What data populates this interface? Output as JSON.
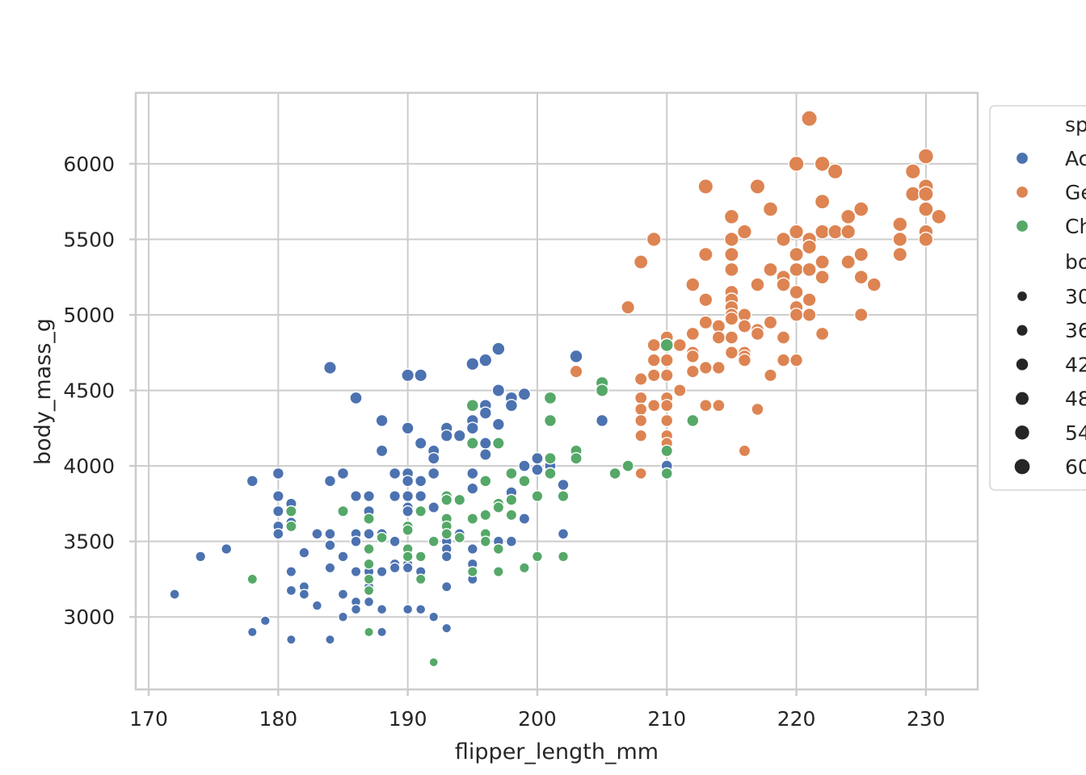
{
  "chart_data": {
    "type": "scatter",
    "title": "",
    "xlabel": "flipper_length_mm",
    "ylabel": "body_mass_g",
    "xlim": [
      169,
      234
    ],
    "ylim": [
      2520,
      6470
    ],
    "xticks": [
      170,
      180,
      190,
      200,
      210,
      220,
      230
    ],
    "yticks": [
      3000,
      3500,
      4000,
      4500,
      5000,
      5500,
      6000
    ],
    "grid": true,
    "legend_placement": "outside right",
    "hue_title": "sp",
    "size_title": "bo",
    "size_legend": [
      {
        "label": "30",
        "value": 3000
      },
      {
        "label": "36",
        "value": 3600
      },
      {
        "label": "42",
        "value": 4200
      },
      {
        "label": "48",
        "value": 4800
      },
      {
        "label": "54",
        "value": 5400
      },
      {
        "label": "60",
        "value": 6000
      }
    ],
    "series": [
      {
        "name": "Ac",
        "color": "#4c72b0",
        "points": [
          [
            172,
            3150
          ],
          [
            174,
            3400
          ],
          [
            176,
            3450
          ],
          [
            178,
            3900
          ],
          [
            178,
            2900
          ],
          [
            179,
            2975
          ],
          [
            180,
            3950
          ],
          [
            180,
            3800
          ],
          [
            180,
            3700
          ],
          [
            180,
            3600
          ],
          [
            180,
            3550
          ],
          [
            181,
            3750
          ],
          [
            181,
            3700
          ],
          [
            181,
            3625
          ],
          [
            181,
            3300
          ],
          [
            181,
            3175
          ],
          [
            181,
            2850
          ],
          [
            182,
            3425
          ],
          [
            182,
            3200
          ],
          [
            182,
            3150
          ],
          [
            183,
            3550
          ],
          [
            183,
            3075
          ],
          [
            184,
            4650
          ],
          [
            184,
            3900
          ],
          [
            184,
            3550
          ],
          [
            184,
            3475
          ],
          [
            184,
            3325
          ],
          [
            184,
            2850
          ],
          [
            185,
            3950
          ],
          [
            185,
            3700
          ],
          [
            185,
            3400
          ],
          [
            185,
            3150
          ],
          [
            185,
            3000
          ],
          [
            186,
            4450
          ],
          [
            186,
            3800
          ],
          [
            186,
            3550
          ],
          [
            186,
            3500
          ],
          [
            186,
            3300
          ],
          [
            186,
            3100
          ],
          [
            186,
            3050
          ],
          [
            187,
            3800
          ],
          [
            187,
            3700
          ],
          [
            187,
            3550
          ],
          [
            187,
            3450
          ],
          [
            187,
            3300
          ],
          [
            187,
            3200
          ],
          [
            187,
            3100
          ],
          [
            188,
            4300
          ],
          [
            188,
            4100
          ],
          [
            188,
            3550
          ],
          [
            188,
            3300
          ],
          [
            188,
            3050
          ],
          [
            188,
            2900
          ],
          [
            189,
            3950
          ],
          [
            189,
            3800
          ],
          [
            189,
            3500
          ],
          [
            189,
            3350
          ],
          [
            189,
            3325
          ],
          [
            190,
            4600
          ],
          [
            190,
            4250
          ],
          [
            190,
            3950
          ],
          [
            190,
            3900
          ],
          [
            190,
            3800
          ],
          [
            190,
            3725
          ],
          [
            190,
            3700
          ],
          [
            190,
            3450
          ],
          [
            190,
            3350
          ],
          [
            190,
            3325
          ],
          [
            190,
            3050
          ],
          [
            191,
            4600
          ],
          [
            191,
            4150
          ],
          [
            191,
            3900
          ],
          [
            191,
            3800
          ],
          [
            191,
            3700
          ],
          [
            191,
            3300
          ],
          [
            191,
            3250
          ],
          [
            191,
            3050
          ],
          [
            192,
            4100
          ],
          [
            192,
            4050
          ],
          [
            192,
            3950
          ],
          [
            192,
            3725
          ],
          [
            192,
            3000
          ],
          [
            193,
            4250
          ],
          [
            193,
            4200
          ],
          [
            193,
            3800
          ],
          [
            193,
            3500
          ],
          [
            193,
            3450
          ],
          [
            193,
            3400
          ],
          [
            193,
            3200
          ],
          [
            193,
            2925
          ],
          [
            194,
            4200
          ],
          [
            194,
            3775
          ],
          [
            194,
            3550
          ],
          [
            195,
            4675
          ],
          [
            195,
            4300
          ],
          [
            195,
            4250
          ],
          [
            195,
            4150
          ],
          [
            195,
            3950
          ],
          [
            195,
            3850
          ],
          [
            195,
            3450
          ],
          [
            195,
            3350
          ],
          [
            195,
            3250
          ],
          [
            196,
            4700
          ],
          [
            196,
            4400
          ],
          [
            196,
            4350
          ],
          [
            196,
            4150
          ],
          [
            196,
            4075
          ],
          [
            196,
            3550
          ],
          [
            197,
            4775
          ],
          [
            197,
            4500
          ],
          [
            197,
            4275
          ],
          [
            197,
            3500
          ],
          [
            198,
            4450
          ],
          [
            198,
            4400
          ],
          [
            198,
            3825
          ],
          [
            198,
            3775
          ],
          [
            198,
            3500
          ],
          [
            199,
            4475
          ],
          [
            199,
            4000
          ],
          [
            199,
            3650
          ],
          [
            200,
            4050
          ],
          [
            200,
            3975
          ],
          [
            201,
            4050
          ],
          [
            201,
            4000
          ],
          [
            201,
            3950
          ],
          [
            202,
            3875
          ],
          [
            202,
            3550
          ],
          [
            203,
            4725
          ],
          [
            205,
            4300
          ],
          [
            210,
            4000
          ]
        ]
      },
      {
        "name": "Ge",
        "color": "#dd8452",
        "points": [
          [
            203,
            4625
          ],
          [
            207,
            5050
          ],
          [
            208,
            5350
          ],
          [
            208,
            4575
          ],
          [
            208,
            4450
          ],
          [
            208,
            4375
          ],
          [
            208,
            4300
          ],
          [
            208,
            4200
          ],
          [
            208,
            3950
          ],
          [
            209,
            5500
          ],
          [
            209,
            4800
          ],
          [
            209,
            4700
          ],
          [
            209,
            4600
          ],
          [
            209,
            4400
          ],
          [
            210,
            4850
          ],
          [
            210,
            4800
          ],
          [
            210,
            4700
          ],
          [
            210,
            4600
          ],
          [
            210,
            4450
          ],
          [
            210,
            4400
          ],
          [
            210,
            4300
          ],
          [
            210,
            4200
          ],
          [
            210,
            4150
          ],
          [
            211,
            4800
          ],
          [
            211,
            4500
          ],
          [
            212,
            5200
          ],
          [
            212,
            4875
          ],
          [
            212,
            4750
          ],
          [
            212,
            4725
          ],
          [
            212,
            4625
          ],
          [
            213,
            5850
          ],
          [
            213,
            5400
          ],
          [
            213,
            5100
          ],
          [
            213,
            4950
          ],
          [
            213,
            4650
          ],
          [
            213,
            4400
          ],
          [
            214,
            4925
          ],
          [
            214,
            4850
          ],
          [
            214,
            4650
          ],
          [
            214,
            4400
          ],
          [
            215,
            5650
          ],
          [
            215,
            5500
          ],
          [
            215,
            5400
          ],
          [
            215,
            5300
          ],
          [
            215,
            5150
          ],
          [
            215,
            5100
          ],
          [
            215,
            5050
          ],
          [
            215,
            5000
          ],
          [
            215,
            4975
          ],
          [
            215,
            4850
          ],
          [
            215,
            4750
          ],
          [
            216,
            5550
          ],
          [
            216,
            5000
          ],
          [
            216,
            4925
          ],
          [
            216,
            4750
          ],
          [
            216,
            4725
          ],
          [
            216,
            4700
          ],
          [
            216,
            4100
          ],
          [
            217,
            5850
          ],
          [
            217,
            5200
          ],
          [
            217,
            4900
          ],
          [
            217,
            4875
          ],
          [
            217,
            4375
          ],
          [
            218,
            5700
          ],
          [
            218,
            5300
          ],
          [
            218,
            4950
          ],
          [
            218,
            4600
          ],
          [
            219,
            5500
          ],
          [
            219,
            5250
          ],
          [
            219,
            5200
          ],
          [
            219,
            4850
          ],
          [
            219,
            4700
          ],
          [
            220,
            6000
          ],
          [
            220,
            5550
          ],
          [
            220,
            5400
          ],
          [
            220,
            5300
          ],
          [
            220,
            5150
          ],
          [
            220,
            5050
          ],
          [
            220,
            5000
          ],
          [
            220,
            4700
          ],
          [
            221,
            6300
          ],
          [
            221,
            5500
          ],
          [
            221,
            5450
          ],
          [
            221,
            5300
          ],
          [
            221,
            5100
          ],
          [
            221,
            5000
          ],
          [
            222,
            6000
          ],
          [
            222,
            5750
          ],
          [
            222,
            5550
          ],
          [
            222,
            5350
          ],
          [
            222,
            5250
          ],
          [
            222,
            4875
          ],
          [
            223,
            5950
          ],
          [
            223,
            5550
          ],
          [
            224,
            5650
          ],
          [
            224,
            5550
          ],
          [
            224,
            5350
          ],
          [
            225,
            5700
          ],
          [
            225,
            5400
          ],
          [
            225,
            5250
          ],
          [
            225,
            5000
          ],
          [
            226,
            5200
          ],
          [
            228,
            5600
          ],
          [
            228,
            5500
          ],
          [
            228,
            5400
          ],
          [
            229,
            5950
          ],
          [
            229,
            5800
          ],
          [
            230,
            6050
          ],
          [
            230,
            5850
          ],
          [
            230,
            5800
          ],
          [
            230,
            5700
          ],
          [
            230,
            5550
          ],
          [
            230,
            5500
          ],
          [
            231,
            5650
          ]
        ]
      },
      {
        "name": "Ch",
        "color": "#55a868",
        "points": [
          [
            178,
            3250
          ],
          [
            181,
            3700
          ],
          [
            181,
            3600
          ],
          [
            185,
            3700
          ],
          [
            187,
            3650
          ],
          [
            187,
            3450
          ],
          [
            187,
            3350
          ],
          [
            187,
            3250
          ],
          [
            187,
            3175
          ],
          [
            187,
            2900
          ],
          [
            188,
            3525
          ],
          [
            190,
            3600
          ],
          [
            190,
            3575
          ],
          [
            190,
            3450
          ],
          [
            190,
            3400
          ],
          [
            191,
            3700
          ],
          [
            191,
            3400
          ],
          [
            191,
            3250
          ],
          [
            192,
            3500
          ],
          [
            192,
            2700
          ],
          [
            193,
            3800
          ],
          [
            193,
            3775
          ],
          [
            193,
            3650
          ],
          [
            193,
            3600
          ],
          [
            193,
            3550
          ],
          [
            194,
            3775
          ],
          [
            194,
            3525
          ],
          [
            195,
            4400
          ],
          [
            195,
            4150
          ],
          [
            195,
            3650
          ],
          [
            195,
            3300
          ],
          [
            196,
            3900
          ],
          [
            196,
            3675
          ],
          [
            196,
            3550
          ],
          [
            196,
            3500
          ],
          [
            197,
            4150
          ],
          [
            197,
            3750
          ],
          [
            197,
            3725
          ],
          [
            197,
            3450
          ],
          [
            197,
            3300
          ],
          [
            198,
            3950
          ],
          [
            198,
            3775
          ],
          [
            198,
            3675
          ],
          [
            199,
            3900
          ],
          [
            199,
            3325
          ],
          [
            200,
            3800
          ],
          [
            200,
            3400
          ],
          [
            201,
            4450
          ],
          [
            201,
            4300
          ],
          [
            201,
            4050
          ],
          [
            201,
            3950
          ],
          [
            202,
            3800
          ],
          [
            202,
            3400
          ],
          [
            203,
            4100
          ],
          [
            203,
            4050
          ],
          [
            205,
            4550
          ],
          [
            205,
            4500
          ],
          [
            206,
            3950
          ],
          [
            207,
            4000
          ],
          [
            210,
            4800
          ],
          [
            210,
            4100
          ],
          [
            210,
            3950
          ],
          [
            212,
            4300
          ]
        ]
      }
    ]
  }
}
